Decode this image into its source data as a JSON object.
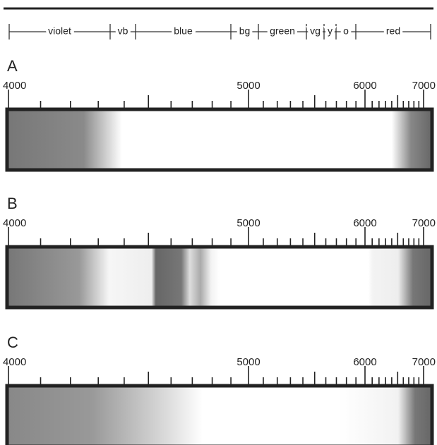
{
  "spectrum_regions": [
    "violet",
    "vb",
    "blue",
    "bg",
    "green",
    "vg",
    "y",
    "o",
    "red"
  ],
  "panels": [
    {
      "label": "A",
      "scale": [
        4000,
        5000,
        6000,
        7000
      ]
    },
    {
      "label": "B",
      "scale": [
        4000,
        5000,
        6000,
        7000
      ]
    },
    {
      "label": "C",
      "scale": [
        4000,
        5000,
        6000,
        7000
      ]
    }
  ]
}
